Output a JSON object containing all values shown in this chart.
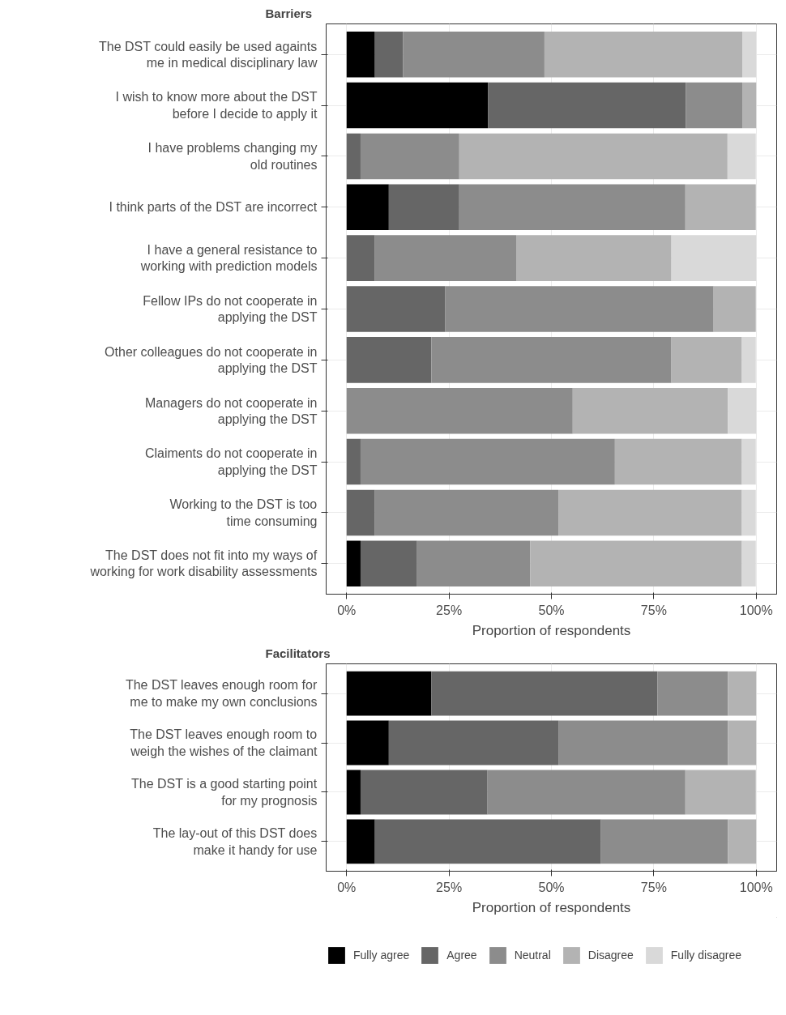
{
  "chart_data": [
    {
      "type": "bar",
      "orientation": "horizontal",
      "stacked": true,
      "title": "Barriers",
      "xlabel": "Proportion of respondents",
      "categories": [
        "The DST could easily be used againts\nme in medical disciplinary law",
        "I wish to know more about the DST\nbefore I decide to apply it",
        "I have problems changing my\nold routines",
        "I think parts of the DST are incorrect",
        "I have a general resistance to\nworking with prediction models",
        "Fellow IPs do not cooperate in\napplying the DST",
        "Other colleagues do not cooperate in\napplying the DST",
        "Managers do not cooperate in\napplying the DST",
        "Claiments do not cooperate in\napplying the DST",
        "Working to the DST is too\ntime consuming",
        "The DST does not fit into my ways of\nworking for work disability assessments"
      ],
      "series": [
        {
          "color": "#000000",
          "values": [
            6.9,
            34.5,
            0,
            10.3,
            0,
            0,
            0,
            0,
            0,
            0,
            3.4
          ]
        },
        {
          "color": "#666666",
          "values": [
            6.9,
            48.3,
            3.4,
            17.2,
            6.9,
            24.1,
            20.7,
            0,
            3.4,
            6.9,
            13.8
          ]
        },
        {
          "color": "#8c8c8c",
          "values": [
            34.5,
            13.8,
            24.1,
            55.2,
            34.5,
            65.5,
            58.6,
            55.2,
            62.1,
            44.8,
            27.6
          ]
        },
        {
          "color": "#b3b3b3",
          "values": [
            48.3,
            3.4,
            65.5,
            17.2,
            37.9,
            10.3,
            17.2,
            37.9,
            31.0,
            44.8,
            51.7
          ]
        },
        {
          "color": "#d9d9d9",
          "values": [
            3.4,
            0,
            6.9,
            0,
            20.7,
            0,
            3.4,
            6.9,
            3.4,
            3.4,
            3.4
          ]
        }
      ],
      "xlim": [
        -5,
        105
      ],
      "xticks": [
        {
          "value": 0,
          "label": "0%"
        },
        {
          "value": 25,
          "label": "25%"
        },
        {
          "value": 50,
          "label": "50%"
        },
        {
          "value": 75,
          "label": "75%"
        },
        {
          "value": 100,
          "label": "100%"
        }
      ],
      "grid": true
    },
    {
      "type": "bar",
      "orientation": "horizontal",
      "stacked": true,
      "title": "Facilitators",
      "xlabel": "Proportion of respondents",
      "categories": [
        "The DST leaves enough room for\nme to make my own conclusions",
        "The DST leaves enough room to\nweigh the wishes of the claimant",
        "The DST is a good starting point\nfor my prognosis",
        "The lay-out of this DST does\nmake it handy for use"
      ],
      "series": [
        {
          "name": "Fully agree",
          "color": "#000000",
          "values": [
            20.7,
            10.3,
            3.4,
            6.9
          ]
        },
        {
          "name": "Agree",
          "color": "#666666",
          "values": [
            55.2,
            41.4,
            31.0,
            55.2
          ]
        },
        {
          "name": "Neutral",
          "color": "#8c8c8c",
          "values": [
            17.2,
            41.4,
            48.3,
            31.0
          ]
        },
        {
          "name": "Disagree",
          "color": "#b3b3b3",
          "values": [
            6.9,
            6.9,
            17.2,
            6.9
          ]
        },
        {
          "name": "Fully disagree",
          "color": "#d9d9d9",
          "values": [
            0,
            0,
            0,
            0
          ]
        }
      ],
      "xlim": [
        -5,
        105
      ],
      "xticks": [
        {
          "value": 0,
          "label": "0%"
        },
        {
          "value": 25,
          "label": "25%"
        },
        {
          "value": 50,
          "label": "50%"
        },
        {
          "value": 75,
          "label": "75%"
        },
        {
          "value": 100,
          "label": "100%"
        }
      ],
      "grid": true,
      "legend": "bottom"
    }
  ]
}
